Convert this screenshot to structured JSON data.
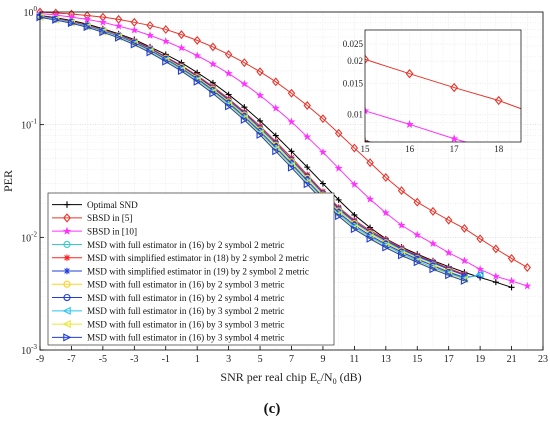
{
  "caption": "(c)",
  "chart_data": {
    "type": "line",
    "xlabel": "SNR per real chip E",
    "xlabel_sub1": "c",
    "xlabel_mid": "/N",
    "xlabel_sub2": "0",
    "xlabel_end": " (dB)",
    "ylabel": "PER",
    "yscale": "log",
    "xlim": [
      -9,
      23
    ],
    "ylim": [
      0.001,
      1
    ],
    "xticks": [
      "-9",
      "-7",
      "-5",
      "-3",
      "-1",
      "1",
      "3",
      "5",
      "7",
      "9",
      "11",
      "13",
      "15",
      "17",
      "19",
      "21",
      "23"
    ],
    "yticks": [
      {
        "base": "10",
        "exp": "0",
        "value": 1
      },
      {
        "base": "10",
        "exp": "-1",
        "value": 0.1
      },
      {
        "base": "10",
        "exp": "-2",
        "value": 0.01
      },
      {
        "base": "10",
        "exp": "-3",
        "value": 0.001
      }
    ],
    "grid": true,
    "legend_position": "bottom-left",
    "series": [
      {
        "name": "Optimal SND",
        "color": "#000000",
        "marker": "plus",
        "x": [
          -9,
          -8,
          -7,
          -6,
          -5,
          -4,
          -3,
          -2,
          -1,
          0,
          1,
          2,
          3,
          4,
          5,
          6,
          7,
          8,
          9,
          10,
          11,
          12,
          13,
          14,
          15,
          16,
          17,
          18,
          19,
          20,
          21
        ],
        "y": [
          0.93,
          0.89,
          0.84,
          0.78,
          0.71,
          0.64,
          0.57,
          0.49,
          0.42,
          0.355,
          0.29,
          0.235,
          0.185,
          0.143,
          0.108,
          0.08,
          0.058,
          0.042,
          0.03,
          0.0215,
          0.0158,
          0.0122,
          0.0097,
          0.0082,
          0.0071,
          0.0062,
          0.0055,
          0.0049,
          0.0044,
          0.004,
          0.0036
        ]
      },
      {
        "name": "SBSD in [5]",
        "color": "#e8342a",
        "marker": "diamond",
        "x": [
          -9,
          -8,
          -7,
          -6,
          -5,
          -4,
          -3,
          -2,
          -1,
          0,
          1,
          2,
          3,
          4,
          5,
          6,
          7,
          8,
          9,
          10,
          11,
          12,
          13,
          14,
          15,
          16,
          17,
          18,
          19,
          20,
          21,
          22
        ],
        "y": [
          1.0,
          0.98,
          0.96,
          0.93,
          0.9,
          0.86,
          0.81,
          0.76,
          0.7,
          0.63,
          0.56,
          0.49,
          0.42,
          0.355,
          0.295,
          0.24,
          0.19,
          0.148,
          0.113,
          0.084,
          0.062,
          0.046,
          0.034,
          0.026,
          0.0205,
          0.017,
          0.0142,
          0.012,
          0.0097,
          0.0079,
          0.0065,
          0.0054
        ]
      },
      {
        "name": "SBSD in [10]",
        "color": "#ff33ff",
        "marker": "star",
        "x": [
          -9,
          -8,
          -7,
          -6,
          -5,
          -4,
          -3,
          -2,
          -1,
          0,
          1,
          2,
          3,
          4,
          5,
          6,
          7,
          8,
          9,
          10,
          11,
          12,
          13,
          14,
          15,
          16,
          17,
          18,
          19,
          20,
          21,
          22
        ],
        "y": [
          0.97,
          0.94,
          0.9,
          0.86,
          0.81,
          0.75,
          0.69,
          0.62,
          0.55,
          0.48,
          0.41,
          0.345,
          0.285,
          0.23,
          0.182,
          0.14,
          0.106,
          0.078,
          0.057,
          0.041,
          0.0295,
          0.0218,
          0.0165,
          0.0128,
          0.0105,
          0.0088,
          0.0073,
          0.0062,
          0.0052,
          0.0045,
          0.0041,
          0.0037
        ]
      },
      {
        "name": "MSD with full estimator in (16) by 2 symbol 2 metric",
        "color": "#33cccc",
        "marker": "circle",
        "x": [
          -9,
          -8,
          -7,
          -6,
          -5,
          -4,
          -3,
          -2,
          -1,
          0,
          1,
          2,
          3,
          4,
          5,
          6,
          7,
          8,
          9,
          10,
          11,
          12,
          13,
          14,
          15,
          16,
          17,
          18
        ],
        "y": [
          0.92,
          0.87,
          0.82,
          0.76,
          0.69,
          0.62,
          0.54,
          0.47,
          0.39,
          0.325,
          0.265,
          0.21,
          0.163,
          0.124,
          0.092,
          0.067,
          0.048,
          0.034,
          0.024,
          0.0175,
          0.0135,
          0.011,
          0.0092,
          0.0078,
          0.0067,
          0.0059,
          0.0052,
          0.0046
        ]
      },
      {
        "name": "MSD with simplified estimator in (18) by 2 symbol 2 metric",
        "color": "#ff2222",
        "marker": "asterisk",
        "x": [
          -9,
          -8,
          -7,
          -6,
          -5,
          -4,
          -3,
          -2,
          -1,
          0,
          1,
          2,
          3,
          4,
          5,
          6,
          7,
          8,
          9,
          10,
          11,
          12,
          13,
          14,
          15,
          16,
          17,
          18
        ],
        "y": [
          0.92,
          0.875,
          0.825,
          0.765,
          0.7,
          0.63,
          0.555,
          0.48,
          0.4,
          0.335,
          0.273,
          0.218,
          0.17,
          0.13,
          0.097,
          0.071,
          0.051,
          0.036,
          0.0255,
          0.0185,
          0.0142,
          0.0115,
          0.0096,
          0.0081,
          0.0069,
          0.0061,
          0.0053,
          0.0047
        ]
      },
      {
        "name": "MSD with simplified estimator in (19) by 2 symbol 2 metric",
        "color": "#1f3ddc",
        "marker": "asterisk",
        "x": [
          -9,
          -8,
          -7,
          -6,
          -5,
          -4,
          -3,
          -2,
          -1,
          0,
          1,
          2,
          3,
          4,
          5,
          6,
          7,
          8,
          9,
          10,
          11,
          12,
          13,
          14,
          15,
          16,
          17,
          18
        ],
        "y": [
          0.92,
          0.872,
          0.82,
          0.76,
          0.695,
          0.625,
          0.548,
          0.473,
          0.395,
          0.33,
          0.268,
          0.213,
          0.166,
          0.127,
          0.094,
          0.069,
          0.049,
          0.035,
          0.0248,
          0.018,
          0.0138,
          0.0112,
          0.0094,
          0.0079,
          0.0068,
          0.006,
          0.0052,
          0.0046
        ]
      },
      {
        "name": "MSD with full estimator in (16) by 2 symbol 3 metric",
        "color": "#ffd21f",
        "marker": "circle",
        "x": [
          -9,
          -8,
          -7,
          -6,
          -5,
          -4,
          -3,
          -2,
          -1,
          0,
          1,
          2,
          3,
          4,
          5,
          6,
          7,
          8,
          9,
          10,
          11,
          12,
          13,
          14,
          15,
          16,
          17,
          18
        ],
        "y": [
          0.915,
          0.868,
          0.815,
          0.755,
          0.688,
          0.618,
          0.54,
          0.465,
          0.388,
          0.322,
          0.262,
          0.207,
          0.16,
          0.122,
          0.09,
          0.066,
          0.047,
          0.0335,
          0.0238,
          0.0172,
          0.0133,
          0.0108,
          0.009,
          0.0076,
          0.0065,
          0.0057,
          0.005,
          0.0044
        ]
      },
      {
        "name": "MSD with full estimator in (16) by 2 symbol 4 metric",
        "color": "#1f3ddc",
        "marker": "circle",
        "x": [
          -9,
          -8,
          -7,
          -6,
          -5,
          -4,
          -3,
          -2,
          -1,
          0,
          1,
          2,
          3,
          4,
          5,
          6,
          7,
          8,
          9,
          10,
          11,
          12,
          13,
          14,
          15,
          16,
          17,
          18,
          19
        ],
        "y": [
          0.91,
          0.865,
          0.81,
          0.75,
          0.68,
          0.61,
          0.535,
          0.458,
          0.382,
          0.316,
          0.256,
          0.202,
          0.156,
          0.118,
          0.087,
          0.063,
          0.045,
          0.032,
          0.0228,
          0.0166,
          0.0128,
          0.0104,
          0.0087,
          0.0074,
          0.0064,
          0.0056,
          0.0049,
          0.0044,
          0.0046
        ]
      },
      {
        "name": "MSD with full estimator in (16) by 3 symbol 2 metric",
        "color": "#29c4f0",
        "marker": "tri-left",
        "x": [
          -9,
          -8,
          -7,
          -6,
          -5,
          -4,
          -3,
          -2,
          -1,
          0,
          1,
          2,
          3,
          4,
          5,
          6,
          7,
          8,
          9,
          10,
          11,
          12,
          13,
          14,
          15,
          16,
          17,
          18,
          19
        ],
        "y": [
          0.905,
          0.86,
          0.805,
          0.744,
          0.673,
          0.603,
          0.527,
          0.45,
          0.375,
          0.31,
          0.25,
          0.197,
          0.152,
          0.115,
          0.085,
          0.061,
          0.0437,
          0.031,
          0.0221,
          0.0161,
          0.0124,
          0.0101,
          0.0085,
          0.0072,
          0.0062,
          0.0054,
          0.0048,
          0.0043,
          0.0047
        ]
      },
      {
        "name": "MSD with full estimator in (16) by 3 symbol 3 metric",
        "color": "#e8e83a",
        "marker": "tri-left",
        "x": [
          -9,
          -8,
          -7,
          -6,
          -5,
          -4,
          -3,
          -2,
          -1,
          0,
          1,
          2,
          3,
          4,
          5,
          6,
          7,
          8,
          9,
          10,
          11,
          12,
          13,
          14,
          15,
          16,
          17,
          18
        ],
        "y": [
          0.9,
          0.855,
          0.8,
          0.738,
          0.667,
          0.597,
          0.52,
          0.444,
          0.369,
          0.305,
          0.246,
          0.194,
          0.149,
          0.113,
          0.083,
          0.06,
          0.0428,
          0.0304,
          0.0217,
          0.0158,
          0.0121,
          0.0099,
          0.0083,
          0.007,
          0.0061,
          0.0053,
          0.0047,
          0.0042
        ]
      },
      {
        "name": "MSD with full estimator in (16) by 3 symbol 4 metric",
        "color": "#1f3ddc",
        "marker": "tri-right",
        "x": [
          -9,
          -8,
          -7,
          -6,
          -5,
          -4,
          -3,
          -2,
          -1,
          0,
          1,
          2,
          3,
          4,
          5,
          6,
          7,
          8,
          9,
          10,
          11,
          12,
          13,
          14,
          15,
          16,
          17,
          18
        ],
        "y": [
          0.895,
          0.85,
          0.795,
          0.732,
          0.66,
          0.59,
          0.513,
          0.437,
          0.362,
          0.299,
          0.24,
          0.189,
          0.145,
          0.11,
          0.081,
          0.058,
          0.0415,
          0.0295,
          0.0211,
          0.0154,
          0.0118,
          0.0097,
          0.0081,
          0.0069,
          0.006,
          0.0052,
          0.0046,
          0.0041
        ]
      }
    ],
    "inset": {
      "xlim": [
        15,
        18.5
      ],
      "ylim": [
        0.007,
        0.03
      ],
      "xticks": [
        "15",
        "16",
        "17",
        "18"
      ],
      "yticks": [
        "0.025",
        "0.02",
        "0.015",
        "0.01"
      ]
    }
  }
}
